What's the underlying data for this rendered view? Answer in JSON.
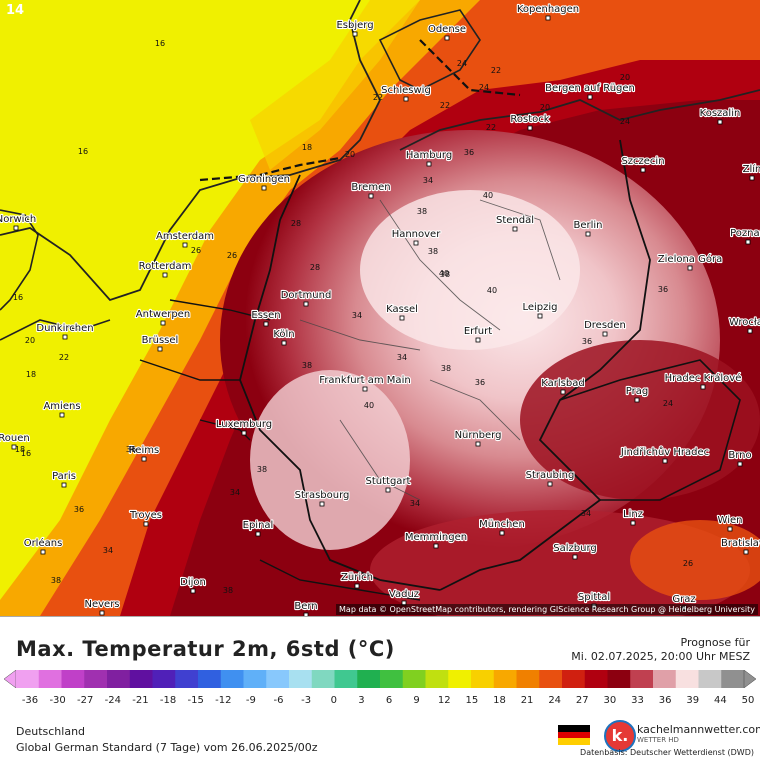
{
  "frame_number": "14",
  "attribution": "Map data © OpenStreetMap contributors, rendering GIScience Research Group @ Heidelberg University",
  "title": "Max. Temperatur 2m, 6std (°C)",
  "forecast": {
    "label": "Prognose für",
    "valid": "Mi. 02.07.2025, 20:00 Uhr MESZ"
  },
  "region": "Deutschland",
  "model": "Global German Standard (7 Tage) vom 26.06.2025/00z",
  "brand": {
    "name": "kachelmannwetter.com",
    "sub": "WETTER HD",
    "logo_letter": "k."
  },
  "data_source": "Datenbasis: Deutscher Wetterdienst (DWD)",
  "colorbar": {
    "ticks": [
      "-36",
      "-30",
      "-27",
      "-24",
      "-21",
      "-18",
      "-15",
      "-12",
      "-9",
      "-6",
      "-3",
      "0",
      "3",
      "6",
      "9",
      "12",
      "15",
      "18",
      "21",
      "24",
      "27",
      "30",
      "33",
      "36",
      "39",
      "44",
      "50"
    ],
    "colors": [
      "#f0a0f0",
      "#e070e0",
      "#c040c8",
      "#a030b0",
      "#8020a0",
      "#6010a0",
      "#5020b8",
      "#4040d0",
      "#3060e0",
      "#4090f0",
      "#60b0f8",
      "#88c8fc",
      "#a8e0f0",
      "#80d8c0",
      "#40c890",
      "#20b050",
      "#40c040",
      "#80d020",
      "#c0e010",
      "#f0f000",
      "#f8d000",
      "#f8a800",
      "#f08000",
      "#e85010",
      "#d02010",
      "#b00010",
      "#8c0010",
      "#c04050",
      "#e0a0a8",
      "#f8e0e0",
      "#c8c8c8",
      "#909090"
    ]
  },
  "cities": [
    {
      "name": "Kopenhagen"
    },
    {
      "name": "Esbjerg"
    },
    {
      "name": "Odense"
    },
    {
      "name": "Schleswig"
    },
    {
      "name": "Bergen auf Rügen"
    },
    {
      "name": "Rostock"
    },
    {
      "name": "Koszalin"
    },
    {
      "name": "Hamburg"
    },
    {
      "name": "Szczecin"
    },
    {
      "name": "Groningen"
    },
    {
      "name": "Bremen"
    },
    {
      "name": "Stendal"
    },
    {
      "name": "Hannover"
    },
    {
      "name": "Berlin"
    },
    {
      "name": "Amsterdam"
    },
    {
      "name": "Rotterdam"
    },
    {
      "name": "Zielona Góra"
    },
    {
      "name": "Dortmund"
    },
    {
      "name": "Essen"
    },
    {
      "name": "Antwerpen"
    },
    {
      "name": "Kassel"
    },
    {
      "name": "Leipzig"
    },
    {
      "name": "Dunkirchen"
    },
    {
      "name": "Brüssel"
    },
    {
      "name": "Köln"
    },
    {
      "name": "Erfurt"
    },
    {
      "name": "Dresden"
    },
    {
      "name": "Frankfurt am Main"
    },
    {
      "name": "Karlsbad"
    },
    {
      "name": "Hradec Králové"
    },
    {
      "name": "Amiens"
    },
    {
      "name": "Prag"
    },
    {
      "name": "Luxemburg"
    },
    {
      "name": "Nürnberg"
    },
    {
      "name": "Reims"
    },
    {
      "name": "Jindřichův Hradec"
    },
    {
      "name": "Brno"
    },
    {
      "name": "Paris"
    },
    {
      "name": "Straubing"
    },
    {
      "name": "Stuttgart"
    },
    {
      "name": "Strasbourg"
    },
    {
      "name": "Troyes"
    },
    {
      "name": "Epinal"
    },
    {
      "name": "Linz"
    },
    {
      "name": "Wien"
    },
    {
      "name": "Memmingen"
    },
    {
      "name": "München"
    },
    {
      "name": "Orléans"
    },
    {
      "name": "Salzburg"
    },
    {
      "name": "Zürich"
    },
    {
      "name": "Dijon"
    },
    {
      "name": "Vaduz"
    },
    {
      "name": "Nevers"
    },
    {
      "name": "Bern"
    },
    {
      "name": "Spittal"
    },
    {
      "name": "Graz"
    },
    {
      "name": "Norwich"
    },
    {
      "name": "Poznań"
    },
    {
      "name": "Wrocław"
    },
    {
      "name": "Zlín"
    },
    {
      "name": "Bratislava"
    },
    {
      "name": "Rouen"
    }
  ],
  "contour_values": [
    "16",
    "16",
    "16",
    "18",
    "20",
    "22",
    "22",
    "22",
    "24",
    "24",
    "20",
    "20",
    "22",
    "24",
    "28",
    "26",
    "28",
    "36",
    "34",
    "38",
    "40",
    "38",
    "40",
    "40",
    "34",
    "38",
    "38",
    "36",
    "38",
    "36",
    "34",
    "40",
    "38",
    "34",
    "34",
    "36",
    "26",
    "38",
    "38",
    "36",
    "34",
    "36",
    "16",
    "18",
    "20",
    "22",
    "24",
    "18",
    "34",
    "26"
  ]
}
